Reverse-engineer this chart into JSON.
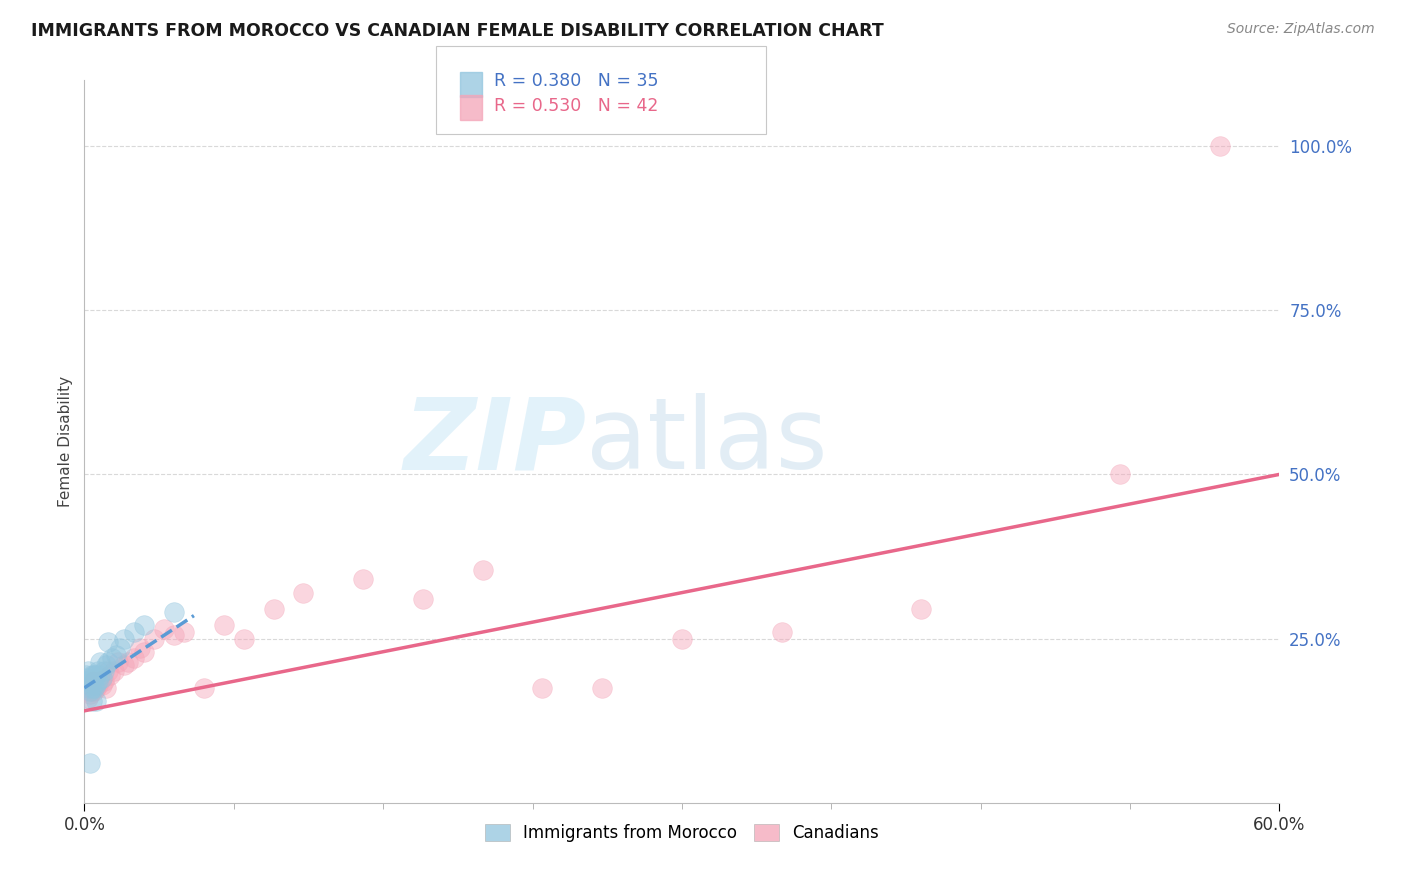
{
  "title": "IMMIGRANTS FROM MOROCCO VS CANADIAN FEMALE DISABILITY CORRELATION CHART",
  "source": "Source: ZipAtlas.com",
  "ylabel": "Female Disability",
  "xlim": [
    0.0,
    0.6
  ],
  "ylim": [
    0.0,
    1.1
  ],
  "yticks": [
    0.25,
    0.5,
    0.75,
    1.0
  ],
  "ytick_labels": [
    "25.0%",
    "50.0%",
    "75.0%",
    "100.0%"
  ],
  "xtick_positions": [
    0.0,
    0.6
  ],
  "xtick_labels": [
    "0.0%",
    "60.0%"
  ],
  "legend1_text": "R = 0.380   N = 35",
  "legend2_text": "R = 0.530   N = 42",
  "legend_series1": "Immigrants from Morocco",
  "legend_series2": "Canadians",
  "blue_color": "#92c5de",
  "pink_color": "#f4a5b8",
  "blue_line_color": "#5b9bd5",
  "pink_line_color": "#e8678a",
  "watermark_zip": "ZIP",
  "watermark_atlas": "atlas",
  "blue_R": 0.38,
  "blue_N": 35,
  "pink_R": 0.53,
  "pink_N": 42,
  "background_color": "#ffffff",
  "grid_color": "#d9d9d9",
  "ytick_color": "#4472C4",
  "blue_scatter_x": [
    0.001,
    0.001,
    0.002,
    0.002,
    0.002,
    0.003,
    0.003,
    0.003,
    0.004,
    0.004,
    0.004,
    0.005,
    0.005,
    0.005,
    0.006,
    0.006,
    0.007,
    0.007,
    0.008,
    0.008,
    0.009,
    0.01,
    0.011,
    0.012,
    0.014,
    0.016,
    0.018,
    0.02,
    0.025,
    0.03,
    0.012,
    0.006,
    0.004,
    0.045,
    0.003
  ],
  "blue_scatter_y": [
    0.185,
    0.195,
    0.175,
    0.19,
    0.2,
    0.17,
    0.18,
    0.185,
    0.175,
    0.185,
    0.195,
    0.175,
    0.18,
    0.195,
    0.18,
    0.195,
    0.185,
    0.2,
    0.195,
    0.215,
    0.19,
    0.2,
    0.21,
    0.215,
    0.22,
    0.225,
    0.235,
    0.25,
    0.26,
    0.27,
    0.245,
    0.155,
    0.155,
    0.29,
    0.06
  ],
  "pink_scatter_x": [
    0.001,
    0.002,
    0.003,
    0.003,
    0.004,
    0.004,
    0.005,
    0.005,
    0.006,
    0.007,
    0.008,
    0.009,
    0.01,
    0.011,
    0.012,
    0.013,
    0.015,
    0.017,
    0.02,
    0.022,
    0.025,
    0.028,
    0.03,
    0.035,
    0.04,
    0.045,
    0.05,
    0.06,
    0.07,
    0.08,
    0.095,
    0.11,
    0.14,
    0.17,
    0.2,
    0.23,
    0.26,
    0.3,
    0.35,
    0.42,
    0.52,
    0.57
  ],
  "pink_scatter_y": [
    0.17,
    0.16,
    0.165,
    0.175,
    0.17,
    0.185,
    0.17,
    0.185,
    0.175,
    0.18,
    0.185,
    0.18,
    0.185,
    0.175,
    0.2,
    0.195,
    0.2,
    0.215,
    0.21,
    0.215,
    0.22,
    0.235,
    0.23,
    0.25,
    0.265,
    0.255,
    0.26,
    0.175,
    0.27,
    0.25,
    0.295,
    0.32,
    0.34,
    0.31,
    0.355,
    0.175,
    0.175,
    0.25,
    0.26,
    0.295,
    0.5,
    1.0
  ],
  "blue_line_x": [
    0.0,
    0.055
  ],
  "blue_line_y": [
    0.175,
    0.285
  ],
  "pink_line_x": [
    0.0,
    0.6
  ],
  "pink_line_y": [
    0.14,
    0.5
  ]
}
